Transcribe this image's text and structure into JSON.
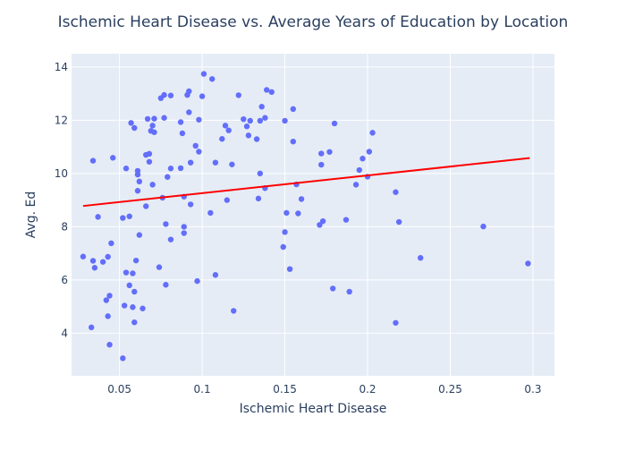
{
  "chart_data": {
    "type": "scatter",
    "title": "Ischemic Heart Disease vs. Average Years of Education by Location",
    "xlabel": "Ischemic Heart Disease",
    "ylabel": "Avg. Ed",
    "xlim": [
      0.021,
      0.313
    ],
    "ylim": [
      2.4,
      14.5
    ],
    "x_ticks": [
      0.05,
      0.1,
      0.15,
      0.2,
      0.25,
      0.3
    ],
    "x_tick_labels": [
      "0.05",
      "0.1",
      "0.15",
      "0.2",
      "0.25",
      "0.3"
    ],
    "y_ticks": [
      4,
      6,
      8,
      10,
      12,
      14
    ],
    "y_tick_labels": [
      "4",
      "6",
      "8",
      "10",
      "12",
      "14"
    ],
    "grid": true,
    "colors": {
      "plot_bg": "#e5ecf6",
      "grid": "#ffffff",
      "marker": "#636efa",
      "trend": "#ff0000",
      "text": "#2a3f5f"
    },
    "trendline": {
      "x": [
        0.028,
        0.298
      ],
      "y": [
        8.78,
        10.58
      ]
    },
    "points": [
      {
        "x": 0.028,
        "y": 6.88
      },
      {
        "x": 0.033,
        "y": 4.22
      },
      {
        "x": 0.034,
        "y": 6.72
      },
      {
        "x": 0.034,
        "y": 10.48
      },
      {
        "x": 0.035,
        "y": 6.46
      },
      {
        "x": 0.037,
        "y": 8.37
      },
      {
        "x": 0.04,
        "y": 6.68
      },
      {
        "x": 0.042,
        "y": 5.24
      },
      {
        "x": 0.043,
        "y": 4.64
      },
      {
        "x": 0.043,
        "y": 6.87
      },
      {
        "x": 0.044,
        "y": 3.57
      },
      {
        "x": 0.044,
        "y": 5.41
      },
      {
        "x": 0.046,
        "y": 10.59
      },
      {
        "x": 0.045,
        "y": 7.38
      },
      {
        "x": 0.052,
        "y": 3.06
      },
      {
        "x": 0.052,
        "y": 8.33
      },
      {
        "x": 0.053,
        "y": 5.04
      },
      {
        "x": 0.054,
        "y": 6.28
      },
      {
        "x": 0.054,
        "y": 10.19
      },
      {
        "x": 0.056,
        "y": 5.8
      },
      {
        "x": 0.056,
        "y": 8.39
      },
      {
        "x": 0.057,
        "y": 11.9
      },
      {
        "x": 0.058,
        "y": 4.98
      },
      {
        "x": 0.058,
        "y": 6.25
      },
      {
        "x": 0.059,
        "y": 11.71
      },
      {
        "x": 0.059,
        "y": 5.56
      },
      {
        "x": 0.059,
        "y": 4.41
      },
      {
        "x": 0.06,
        "y": 6.73
      },
      {
        "x": 0.061,
        "y": 9.96
      },
      {
        "x": 0.061,
        "y": 10.1
      },
      {
        "x": 0.061,
        "y": 9.35
      },
      {
        "x": 0.062,
        "y": 9.7
      },
      {
        "x": 0.062,
        "y": 7.69
      },
      {
        "x": 0.064,
        "y": 4.93
      },
      {
        "x": 0.066,
        "y": 8.77
      },
      {
        "x": 0.067,
        "y": 12.05
      },
      {
        "x": 0.066,
        "y": 10.7
      },
      {
        "x": 0.068,
        "y": 10.74
      },
      {
        "x": 0.068,
        "y": 10.44
      },
      {
        "x": 0.069,
        "y": 11.6
      },
      {
        "x": 0.07,
        "y": 11.8
      },
      {
        "x": 0.071,
        "y": 12.06
      },
      {
        "x": 0.071,
        "y": 11.55
      },
      {
        "x": 0.07,
        "y": 9.58
      },
      {
        "x": 0.074,
        "y": 6.48
      },
      {
        "x": 0.075,
        "y": 12.83
      },
      {
        "x": 0.076,
        "y": 9.09
      },
      {
        "x": 0.077,
        "y": 12.95
      },
      {
        "x": 0.077,
        "y": 12.09
      },
      {
        "x": 0.078,
        "y": 5.82
      },
      {
        "x": 0.078,
        "y": 8.1
      },
      {
        "x": 0.079,
        "y": 9.87
      },
      {
        "x": 0.081,
        "y": 12.93
      },
      {
        "x": 0.081,
        "y": 10.19
      },
      {
        "x": 0.081,
        "y": 7.52
      },
      {
        "x": 0.087,
        "y": 10.2
      },
      {
        "x": 0.087,
        "y": 11.93
      },
      {
        "x": 0.088,
        "y": 11.51
      },
      {
        "x": 0.089,
        "y": 9.13
      },
      {
        "x": 0.089,
        "y": 8.0
      },
      {
        "x": 0.089,
        "y": 7.76
      },
      {
        "x": 0.091,
        "y": 12.95
      },
      {
        "x": 0.092,
        "y": 13.09
      },
      {
        "x": 0.092,
        "y": 12.3
      },
      {
        "x": 0.093,
        "y": 8.84
      },
      {
        "x": 0.093,
        "y": 10.41
      },
      {
        "x": 0.096,
        "y": 11.04
      },
      {
        "x": 0.097,
        "y": 5.96
      },
      {
        "x": 0.098,
        "y": 10.82
      },
      {
        "x": 0.098,
        "y": 12.02
      },
      {
        "x": 0.1,
        "y": 12.9
      },
      {
        "x": 0.101,
        "y": 13.74
      },
      {
        "x": 0.105,
        "y": 8.52
      },
      {
        "x": 0.106,
        "y": 13.55
      },
      {
        "x": 0.108,
        "y": 10.41
      },
      {
        "x": 0.108,
        "y": 6.19
      },
      {
        "x": 0.112,
        "y": 11.3
      },
      {
        "x": 0.114,
        "y": 11.8
      },
      {
        "x": 0.115,
        "y": 9.0
      },
      {
        "x": 0.116,
        "y": 11.62
      },
      {
        "x": 0.118,
        "y": 10.34
      },
      {
        "x": 0.119,
        "y": 4.84
      },
      {
        "x": 0.122,
        "y": 12.94
      },
      {
        "x": 0.125,
        "y": 12.04
      },
      {
        "x": 0.127,
        "y": 11.77
      },
      {
        "x": 0.128,
        "y": 11.43
      },
      {
        "x": 0.129,
        "y": 11.98
      },
      {
        "x": 0.133,
        "y": 11.29
      },
      {
        "x": 0.134,
        "y": 9.06
      },
      {
        "x": 0.135,
        "y": 10.0
      },
      {
        "x": 0.135,
        "y": 11.98
      },
      {
        "x": 0.136,
        "y": 12.51
      },
      {
        "x": 0.138,
        "y": 12.09
      },
      {
        "x": 0.138,
        "y": 9.45
      },
      {
        "x": 0.139,
        "y": 13.14
      },
      {
        "x": 0.142,
        "y": 13.06
      },
      {
        "x": 0.149,
        "y": 7.24
      },
      {
        "x": 0.15,
        "y": 7.8
      },
      {
        "x": 0.15,
        "y": 11.98
      },
      {
        "x": 0.151,
        "y": 8.52
      },
      {
        "x": 0.153,
        "y": 6.41
      },
      {
        "x": 0.155,
        "y": 12.42
      },
      {
        "x": 0.155,
        "y": 11.2
      },
      {
        "x": 0.157,
        "y": 9.59
      },
      {
        "x": 0.158,
        "y": 8.5
      },
      {
        "x": 0.16,
        "y": 9.04
      },
      {
        "x": 0.171,
        "y": 8.07
      },
      {
        "x": 0.172,
        "y": 10.75
      },
      {
        "x": 0.172,
        "y": 10.33
      },
      {
        "x": 0.173,
        "y": 8.21
      },
      {
        "x": 0.177,
        "y": 10.81
      },
      {
        "x": 0.179,
        "y": 5.68
      },
      {
        "x": 0.18,
        "y": 11.88
      },
      {
        "x": 0.187,
        "y": 8.26
      },
      {
        "x": 0.189,
        "y": 5.56
      },
      {
        "x": 0.193,
        "y": 9.58
      },
      {
        "x": 0.195,
        "y": 10.13
      },
      {
        "x": 0.197,
        "y": 10.56
      },
      {
        "x": 0.2,
        "y": 9.88
      },
      {
        "x": 0.201,
        "y": 10.82
      },
      {
        "x": 0.203,
        "y": 11.53
      },
      {
        "x": 0.217,
        "y": 9.3
      },
      {
        "x": 0.217,
        "y": 4.39
      },
      {
        "x": 0.219,
        "y": 8.18
      },
      {
        "x": 0.232,
        "y": 6.83
      },
      {
        "x": 0.27,
        "y": 8.01
      },
      {
        "x": 0.297,
        "y": 6.62
      }
    ]
  }
}
